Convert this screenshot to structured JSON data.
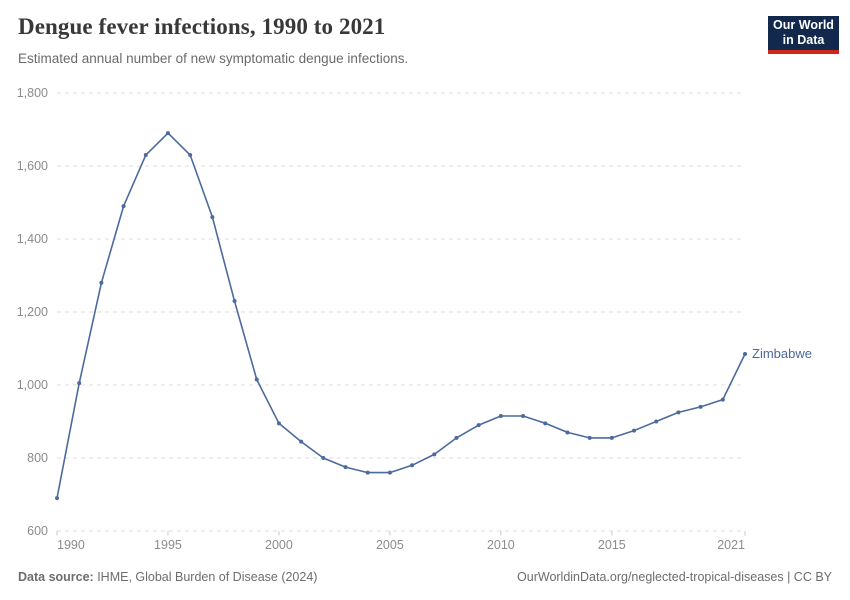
{
  "header": {
    "title": "Dengue fever infections, 1990 to 2021",
    "subtitle": "Estimated annual number of new symptomatic dengue infections."
  },
  "logo": {
    "line1": "Our World",
    "line2": "in Data",
    "bg_color": "#12294d",
    "bar_color": "#d0271d"
  },
  "chart_data": {
    "type": "line",
    "title": "Dengue fever infections, 1990 to 2021",
    "subtitle": "Estimated annual number of new symptomatic dengue infections.",
    "xlabel": "",
    "ylabel": "",
    "xlim": [
      1990,
      2021
    ],
    "ylim": [
      600,
      1800
    ],
    "grid": "horizontal-dashed",
    "legend_position": "end-of-line-label",
    "x": [
      1990,
      1991,
      1992,
      1993,
      1994,
      1995,
      1996,
      1997,
      1998,
      1999,
      2000,
      2001,
      2002,
      2003,
      2004,
      2005,
      2006,
      2007,
      2008,
      2009,
      2010,
      2011,
      2012,
      2013,
      2014,
      2015,
      2016,
      2017,
      2018,
      2019,
      2020,
      2021
    ],
    "series": [
      {
        "name": "Zimbabwe",
        "color": "#4c6a9c",
        "values": [
          690,
          1005,
          1280,
          1490,
          1630,
          1690,
          1630,
          1460,
          1230,
          1015,
          895,
          845,
          800,
          775,
          760,
          760,
          780,
          810,
          855,
          890,
          915,
          915,
          895,
          870,
          855,
          855,
          875,
          900,
          925,
          940,
          960,
          1085
        ]
      }
    ],
    "y_ticks": [
      {
        "v": 600,
        "label": "600"
      },
      {
        "v": 800,
        "label": "800"
      },
      {
        "v": 1000,
        "label": "1,000"
      },
      {
        "v": 1200,
        "label": "1,200"
      },
      {
        "v": 1400,
        "label": "1,400"
      },
      {
        "v": 1600,
        "label": "1,600"
      },
      {
        "v": 1800,
        "label": "1,800"
      }
    ],
    "x_ticks": [
      {
        "v": 1990,
        "label": "1990"
      },
      {
        "v": 1995,
        "label": "1995"
      },
      {
        "v": 2000,
        "label": "2000"
      },
      {
        "v": 2005,
        "label": "2005"
      },
      {
        "v": 2010,
        "label": "2010"
      },
      {
        "v": 2015,
        "label": "2015"
      },
      {
        "v": 2021,
        "label": "2021"
      }
    ],
    "style": {
      "grid_color": "#dedede",
      "tick_mark_color": "#c8c8c8",
      "tick_label_color": "#8c8c8c"
    }
  },
  "footer": {
    "source_label": "Data source:",
    "source_text": " IHME, Global Burden of Disease (2024)",
    "link_text": "OurWorldinData.org/neglected-tropical-diseases | CC BY"
  }
}
